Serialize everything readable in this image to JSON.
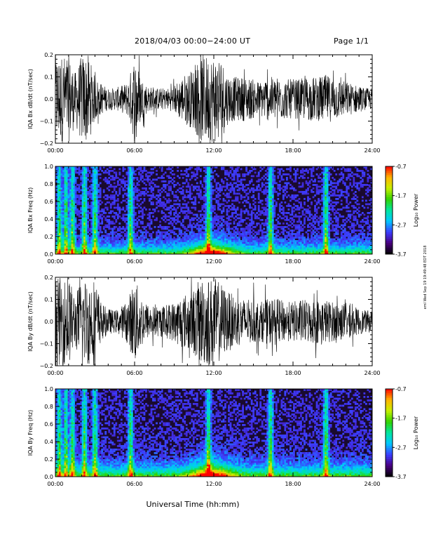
{
  "header": {
    "title": "2018/04/03  00:00−24:00 UT",
    "page": "Page 1/1"
  },
  "footer": {
    "xlabel": "Universal Time (hh:mm)",
    "side_stamp": "eml Wed Sep 19 19:49:48 EDT 2018"
  },
  "colorbar": {
    "label": "Log₁₀ Power",
    "ticks": [
      "-0.7",
      "-1.7",
      "-2.7",
      "-3.7"
    ],
    "range": [
      -3.7,
      -0.7
    ],
    "colors": [
      "#000000",
      "#4a0080",
      "#3c3cff",
      "#00c8ff",
      "#00e6a0",
      "#32d200",
      "#c8f000",
      "#ffb400",
      "#ff0000"
    ]
  },
  "chart_data": [
    {
      "type": "line",
      "panel": "IQA Bx dB/dt",
      "ylabel": "IQA Bx dB/dt (nT/sec)",
      "xlabel": "",
      "xticks": [
        "00:00",
        "06:00",
        "12:00",
        "18:00",
        "24:00"
      ],
      "xlim_hours": [
        0,
        24
      ],
      "ylim": [
        -0.2,
        0.2
      ],
      "yticks": [
        "0.2",
        "0.1",
        "0.0",
        "−0.1",
        "−0.2"
      ],
      "series": [
        {
          "x_hours": [
            0,
            0.5,
            1,
            1.5,
            2,
            2.5,
            3,
            3.5,
            4,
            4.5,
            5,
            5.5,
            6,
            6.5,
            7,
            7.5,
            8,
            8.5,
            9,
            9.5,
            10,
            10.5,
            11,
            11.5,
            12,
            12.5,
            13,
            13.5,
            14,
            14.5,
            15,
            15.5,
            16,
            16.5,
            17,
            17.5,
            18,
            18.5,
            19,
            19.5,
            20,
            20.5,
            21,
            21.5,
            22,
            22.5,
            23,
            23.5,
            24
          ],
          "amplitude": [
            0.2,
            0.2,
            0.2,
            0.12,
            0.2,
            0.2,
            0.1,
            0.07,
            0.05,
            0.05,
            0.06,
            0.08,
            0.2,
            0.1,
            0.06,
            0.05,
            0.05,
            0.05,
            0.06,
            0.1,
            0.12,
            0.14,
            0.2,
            0.2,
            0.2,
            0.2,
            0.12,
            0.1,
            0.1,
            0.1,
            0.09,
            0.08,
            0.1,
            0.1,
            0.1,
            0.09,
            0.09,
            0.09,
            0.1,
            0.1,
            0.1,
            0.11,
            0.1,
            0.09,
            0.08,
            0.07,
            0.06,
            0.05,
            0.05
          ]
        }
      ]
    },
    {
      "type": "heatmap",
      "panel": "IQA Bx Freq",
      "ylabel": "IQA Bx Freq (Hz)",
      "xticks": [
        "00:00",
        "06:00",
        "12:00",
        "18:00",
        "24:00"
      ],
      "xlim_hours": [
        0,
        24
      ],
      "ylim": [
        0,
        1.0
      ],
      "yticks": [
        "1.0",
        "0.8",
        "0.6",
        "0.4",
        "0.2",
        "0.0"
      ],
      "bright_hours": [
        0.3,
        0.8,
        1.3,
        2.2,
        3.0,
        5.7,
        11.6,
        16.3,
        20.5
      ],
      "low_freq_band_hz": 0.06,
      "zlim": [
        -3.7,
        -0.7
      ]
    },
    {
      "type": "line",
      "panel": "IQA By dB/dt",
      "ylabel": "IQA By dB/dt (nT/sec)",
      "xticks": [
        "00:00",
        "06:00",
        "12:00",
        "18:00",
        "24:00"
      ],
      "xlim_hours": [
        0,
        24
      ],
      "ylim": [
        -0.2,
        0.2
      ],
      "yticks": [
        "0.2",
        "0.1",
        "0.0",
        "−0.1",
        "−0.2"
      ],
      "series": [
        {
          "x_hours": [
            0,
            0.5,
            1,
            1.5,
            2,
            2.5,
            3,
            3.5,
            4,
            4.5,
            5,
            5.5,
            6,
            6.5,
            7,
            7.5,
            8,
            8.5,
            9,
            9.5,
            10,
            10.5,
            11,
            11.5,
            12,
            12.5,
            13,
            13.5,
            14,
            14.5,
            15,
            15.5,
            16,
            16.5,
            17,
            17.5,
            18,
            18.5,
            19,
            19.5,
            20,
            20.5,
            21,
            21.5,
            22,
            22.5,
            23,
            23.5,
            24
          ],
          "amplitude": [
            0.2,
            0.2,
            0.2,
            0.12,
            0.2,
            0.2,
            0.2,
            0.08,
            0.06,
            0.05,
            0.07,
            0.1,
            0.2,
            0.12,
            0.08,
            0.07,
            0.07,
            0.08,
            0.09,
            0.12,
            0.13,
            0.15,
            0.2,
            0.2,
            0.2,
            0.18,
            0.14,
            0.12,
            0.11,
            0.1,
            0.1,
            0.09,
            0.1,
            0.11,
            0.1,
            0.09,
            0.09,
            0.1,
            0.1,
            0.1,
            0.1,
            0.1,
            0.09,
            0.09,
            0.08,
            0.07,
            0.06,
            0.05,
            0.05
          ]
        }
      ]
    },
    {
      "type": "heatmap",
      "panel": "IQA By Freq",
      "ylabel": "IQA By Freq (Hz)",
      "xticks": [
        "00:00",
        "06:00",
        "12:00",
        "18:00",
        "24:00"
      ],
      "xlim_hours": [
        0,
        24
      ],
      "ylim": [
        0,
        1.0
      ],
      "yticks": [
        "1.0",
        "0.8",
        "0.6",
        "0.4",
        "0.2",
        "0.0"
      ],
      "bright_hours": [
        0.3,
        0.8,
        1.3,
        2.2,
        3.0,
        5.7,
        11.6,
        16.3,
        20.5
      ],
      "low_freq_band_hz": 0.08,
      "zlim": [
        -3.7,
        -0.7
      ]
    }
  ]
}
